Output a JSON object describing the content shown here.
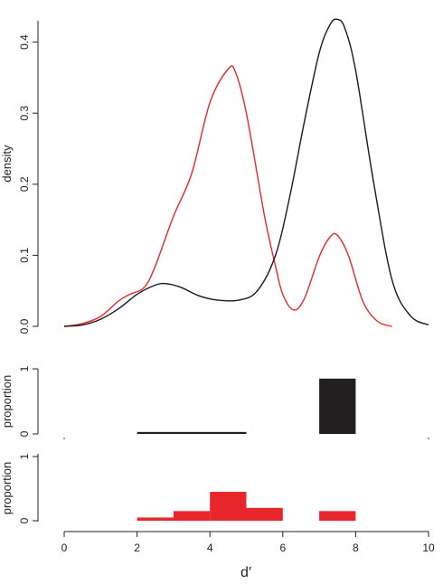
{
  "chart_data": [
    {
      "type": "line",
      "ylabel": "density",
      "ylim": [
        0,
        0.43
      ],
      "yticks": [
        "0.0",
        "0.1",
        "0.2",
        "0.3",
        "0.4"
      ],
      "xlim": [
        0,
        10
      ],
      "series": [
        {
          "color": "#e8262b",
          "x": [
            0,
            0.5,
            1,
            1.5,
            1.8,
            2.2,
            2.5,
            3,
            3.5,
            4,
            4.5,
            4.7,
            5,
            5.5,
            5.8,
            6,
            6.3,
            6.6,
            7,
            7.3,
            7.5,
            7.8,
            8.2,
            8.6,
            9
          ],
          "y": [
            0,
            0.004,
            0.014,
            0.036,
            0.045,
            0.055,
            0.085,
            0.155,
            0.215,
            0.315,
            0.362,
            0.358,
            0.3,
            0.155,
            0.085,
            0.045,
            0.023,
            0.04,
            0.098,
            0.126,
            0.128,
            0.1,
            0.035,
            0.007,
            0
          ]
        },
        {
          "color": "#1a1a1a",
          "x": [
            0,
            0.5,
            1,
            1.5,
            2,
            2.5,
            2.8,
            3.2,
            3.7,
            4.2,
            4.8,
            5.3,
            5.8,
            6.2,
            6.6,
            7,
            7.3,
            7.5,
            7.7,
            8,
            8.5,
            9,
            9.5,
            10
          ],
          "y": [
            0,
            0.002,
            0.01,
            0.025,
            0.045,
            0.058,
            0.06,
            0.055,
            0.043,
            0.037,
            0.037,
            0.05,
            0.1,
            0.185,
            0.29,
            0.385,
            0.425,
            0.432,
            0.42,
            0.36,
            0.2,
            0.065,
            0.015,
            0.002
          ]
        }
      ]
    },
    {
      "type": "bar",
      "ylabel": "proportion",
      "ylim": [
        0,
        1
      ],
      "yticks": [
        "0",
        "1"
      ],
      "color": "#231f20",
      "bins": [
        {
          "x0": 2,
          "x1": 5,
          "value": 0.03
        },
        {
          "x0": 7,
          "x1": 8,
          "value": 0.85
        }
      ]
    },
    {
      "type": "bar",
      "ylabel": "proportion",
      "ylim": [
        0,
        1
      ],
      "yticks": [
        "0",
        "1"
      ],
      "color": "#e8262b",
      "bins": [
        {
          "x0": 2,
          "x1": 3,
          "value": 0.05
        },
        {
          "x0": 3,
          "x1": 4,
          "value": 0.15
        },
        {
          "x0": 4,
          "x1": 5,
          "value": 0.45
        },
        {
          "x0": 5,
          "x1": 6,
          "value": 0.2
        },
        {
          "x0": 7,
          "x1": 8,
          "value": 0.15
        }
      ],
      "xticks": [
        "0",
        "2",
        "4",
        "6",
        "8",
        "10"
      ],
      "xlabel": "d′"
    }
  ]
}
